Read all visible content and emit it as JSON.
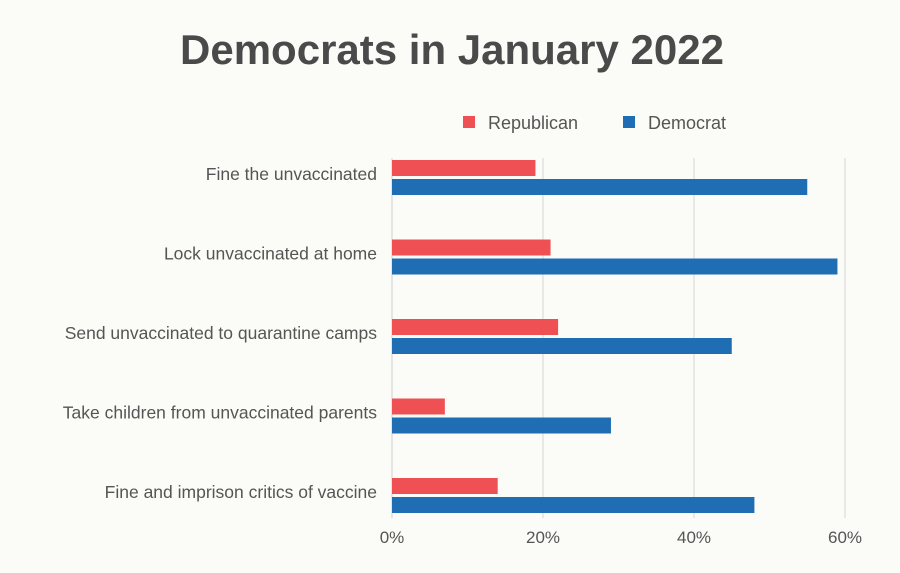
{
  "chart_data": {
    "type": "bar",
    "orientation": "horizontal",
    "title": "Democrats in January 2022",
    "categories": [
      "Fine the unvaccinated",
      "Lock unvaccinated at home",
      "Send unvaccinated to quarantine camps",
      "Take children from unvaccinated parents",
      "Fine and imprison critics of vaccine"
    ],
    "series": [
      {
        "name": "Republican",
        "color": "#ef5053",
        "values": [
          19,
          21,
          22,
          7,
          14
        ]
      },
      {
        "name": "Democrat",
        "color": "#1f6db3",
        "values": [
          55,
          59,
          45,
          29,
          48
        ]
      }
    ],
    "x_ticks": [
      0,
      20,
      40,
      60
    ],
    "x_tick_labels": [
      "0%",
      "20%",
      "40%",
      "60%"
    ],
    "xlim": [
      0,
      60
    ],
    "grid": true,
    "legend_position": "top-right",
    "xlabel": "",
    "ylabel": ""
  }
}
